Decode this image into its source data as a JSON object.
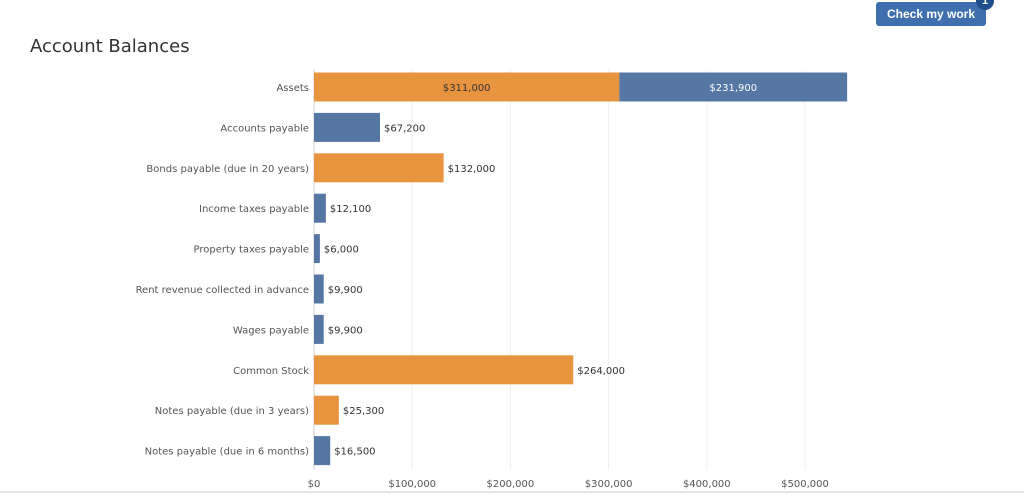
{
  "header": {
    "check_label": "Check my work",
    "badge_count": "1",
    "button_color": "#3f6fad",
    "badge_color": "#1f4e8c"
  },
  "chart_data": {
    "type": "bar",
    "orientation": "horizontal",
    "stacked": true,
    "title": "Account Balances",
    "xlabel": "",
    "ylabel": "",
    "xlim": [
      0,
      540000
    ],
    "xticks": [
      0,
      100000,
      200000,
      300000,
      400000,
      500000
    ],
    "xtick_labels": [
      "$0",
      "$100,000",
      "$200,000",
      "$300,000",
      "$400,000",
      "$500,000"
    ],
    "grid": true,
    "colors": {
      "orange": "#e8943f",
      "blue": "#5677a4"
    },
    "categories": [
      "Assets",
      "Accounts payable",
      "Bonds payable (due in 20 years)",
      "Income taxes payable",
      "Property taxes payable",
      "Rent revenue collected in advance",
      "Wages payable",
      "Common Stock",
      "Notes payable (due in 3 years)",
      "Notes payable (due in 6 months)"
    ],
    "bars": [
      {
        "category": "Assets",
        "segments": [
          {
            "value": 311000,
            "label": "$311,000",
            "color": "orange"
          },
          {
            "value": 231900,
            "label": "$231,900",
            "color": "blue"
          }
        ]
      },
      {
        "category": "Accounts payable",
        "segments": [
          {
            "value": 67200,
            "label": "$67,200",
            "color": "blue"
          }
        ]
      },
      {
        "category": "Bonds payable (due in 20 years)",
        "segments": [
          {
            "value": 132000,
            "label": "$132,000",
            "color": "orange"
          }
        ]
      },
      {
        "category": "Income taxes payable",
        "segments": [
          {
            "value": 12100,
            "label": "$12,100",
            "color": "blue"
          }
        ]
      },
      {
        "category": "Property taxes payable",
        "segments": [
          {
            "value": 6000,
            "label": "$6,000",
            "color": "blue"
          }
        ]
      },
      {
        "category": "Rent revenue collected in advance",
        "segments": [
          {
            "value": 9900,
            "label": "$9,900",
            "color": "blue"
          }
        ]
      },
      {
        "category": "Wages payable",
        "segments": [
          {
            "value": 9900,
            "label": "$9,900",
            "color": "blue"
          }
        ]
      },
      {
        "category": "Common Stock",
        "segments": [
          {
            "value": 264000,
            "label": "$264,000",
            "color": "orange"
          }
        ]
      },
      {
        "category": "Notes payable (due in 3 years)",
        "segments": [
          {
            "value": 25300,
            "label": "$25,300",
            "color": "orange"
          }
        ]
      },
      {
        "category": "Notes payable (due in 6 months)",
        "segments": [
          {
            "value": 16500,
            "label": "$16,500",
            "color": "blue"
          }
        ]
      }
    ]
  }
}
